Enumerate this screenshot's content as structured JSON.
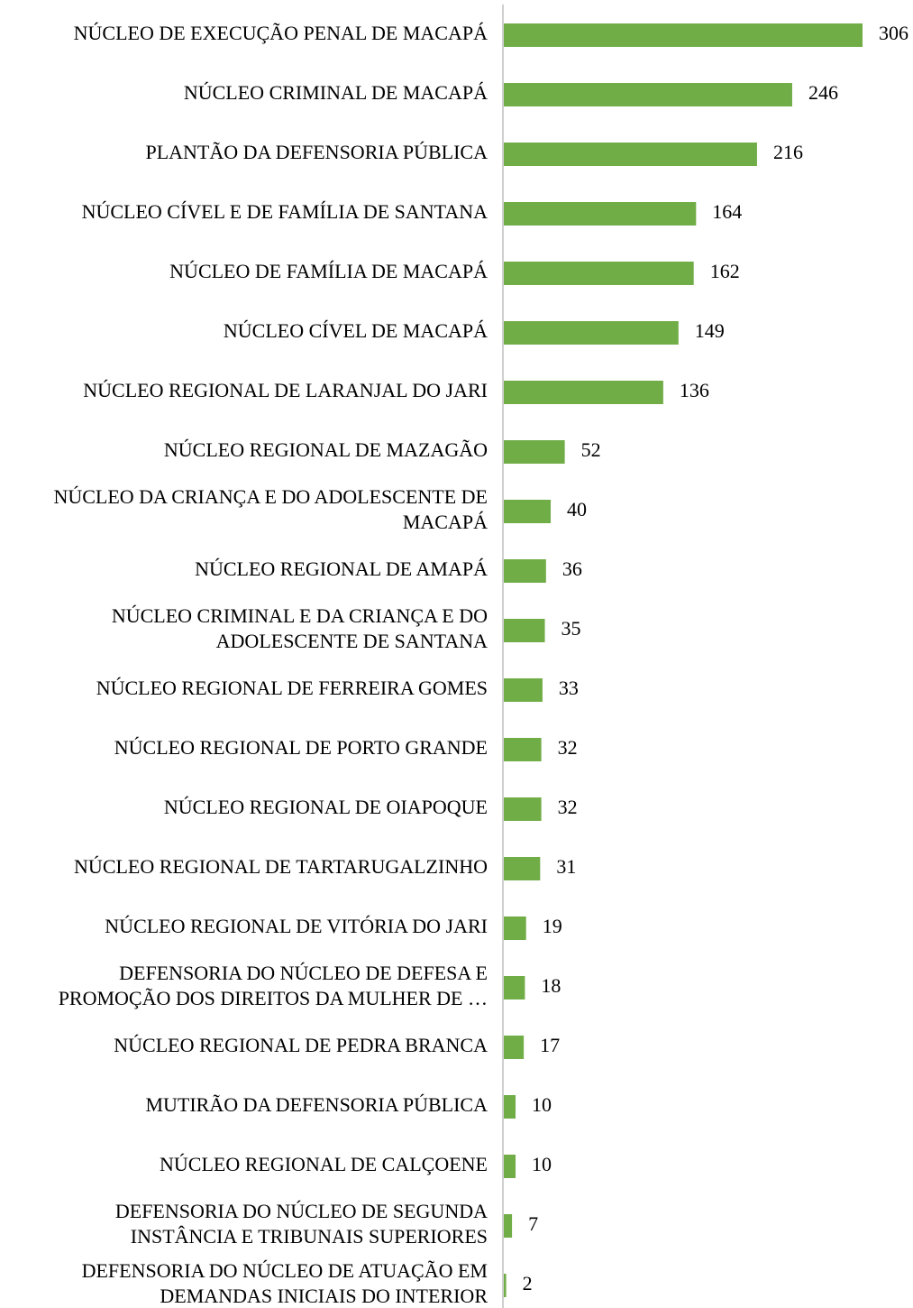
{
  "chart_data": {
    "type": "bar",
    "orientation": "horizontal",
    "color": "#70ad47",
    "categories": [
      "NÚCLEO DE EXECUÇÃO PENAL DE MACAPÁ",
      "NÚCLEO CRIMINAL DE MACAPÁ",
      "PLANTÃO DA DEFENSORIA PÚBLICA",
      "NÚCLEO CÍVEL E DE FAMÍLIA DE SANTANA",
      "NÚCLEO DE FAMÍLIA DE MACAPÁ",
      "NÚCLEO CÍVEL DE MACAPÁ",
      "NÚCLEO REGIONAL DE LARANJAL DO JARI",
      "NÚCLEO REGIONAL DE MAZAGÃO",
      "NÚCLEO DA CRIANÇA E DO ADOLESCENTE DE\nMACAPÁ",
      "NÚCLEO REGIONAL DE AMAPÁ",
      "NÚCLEO CRIMINAL E DA CRIANÇA E DO\nADOLESCENTE DE SANTANA",
      "NÚCLEO REGIONAL DE FERREIRA GOMES",
      "NÚCLEO REGIONAL DE PORTO GRANDE",
      "NÚCLEO REGIONAL DE OIAPOQUE",
      "NÚCLEO REGIONAL DE TARTARUGALZINHO",
      "NÚCLEO REGIONAL DE VITÓRIA DO JARI",
      "DEFENSORIA DO NÚCLEO DE DEFESA E\nPROMOÇÃO DOS DIREITOS DA MULHER DE …",
      "NÚCLEO REGIONAL DE PEDRA BRANCA",
      "MUTIRÃO DA DEFENSORIA PÚBLICA",
      "NÚCLEO REGIONAL DE CALÇOENE",
      "DEFENSORIA DO NÚCLEO DE SEGUNDA\nINSTÂNCIA E TRIBUNAIS SUPERIORES",
      "DEFENSORIA DO NÚCLEO DE ATUAÇÃO EM\nDEMANDAS INICIAIS DO INTERIOR"
    ],
    "values": [
      306,
      246,
      216,
      164,
      162,
      149,
      136,
      52,
      40,
      36,
      35,
      33,
      32,
      32,
      31,
      19,
      18,
      17,
      10,
      10,
      7,
      2
    ]
  }
}
